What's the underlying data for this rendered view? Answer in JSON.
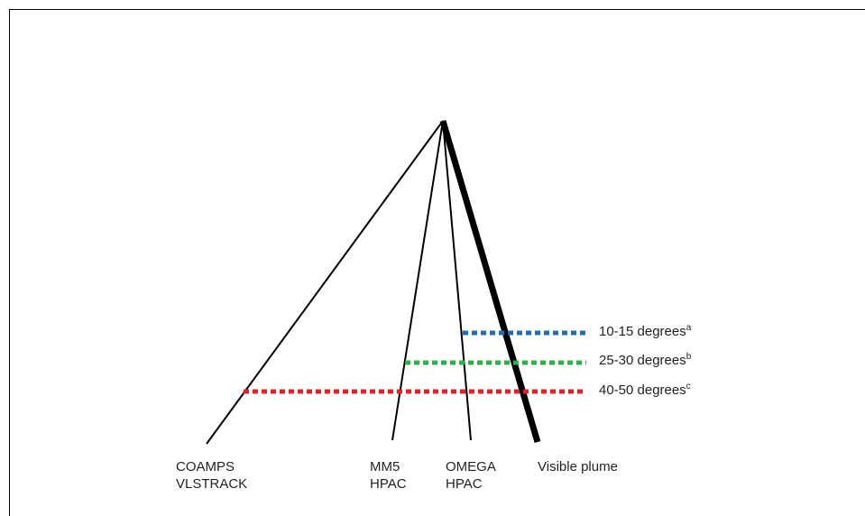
{
  "diagram": {
    "model_labels": [
      {
        "id": "coamps",
        "line1": "COAMPS",
        "line2": "VLSTRACK"
      },
      {
        "id": "mm5",
        "line1": "MM5",
        "line2": "HPAC"
      },
      {
        "id": "omega",
        "line1": "OMEGA",
        "line2": "HPAC"
      },
      {
        "id": "plume",
        "line1": "Visible plume",
        "line2": ""
      }
    ],
    "angle_labels": [
      {
        "text": "10-15 degrees",
        "sup": "a",
        "color": "#1f6fb4"
      },
      {
        "text": "25-30 degrees",
        "sup": "b",
        "color": "#2db14a"
      },
      {
        "text": "40-50 degrees",
        "sup": "c",
        "color": "#e2232a"
      }
    ],
    "line_color": "#000000"
  }
}
